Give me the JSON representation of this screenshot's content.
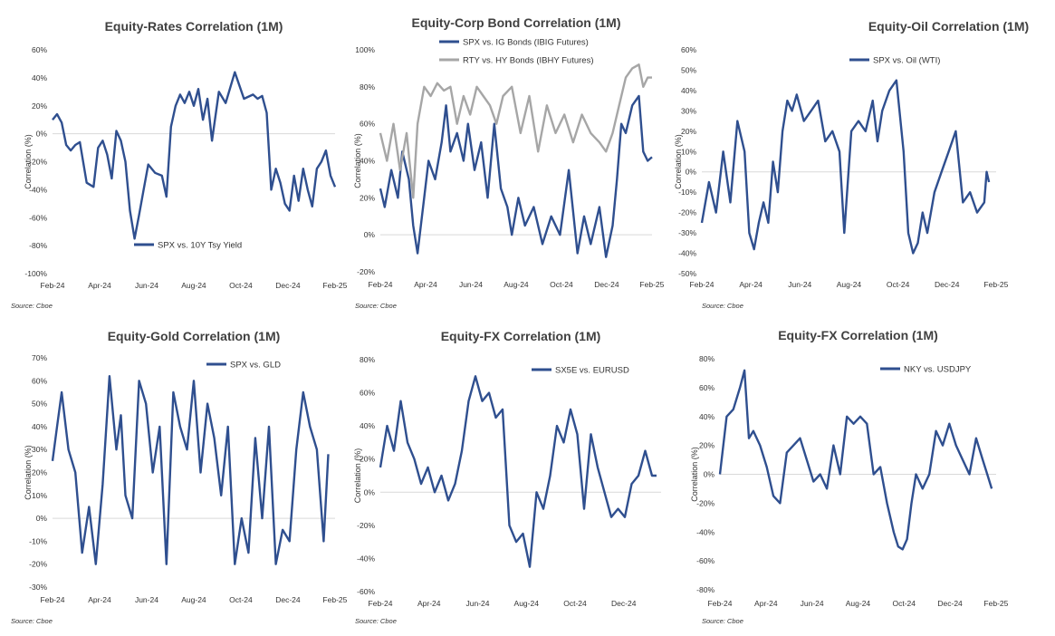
{
  "chart_data": [
    {
      "type": "line",
      "title": "Equity-Rates Correlation (1M)",
      "ylabel": "Correlation (%)",
      "source": "Source: Cboe",
      "xticks": [
        "Feb-24",
        "Apr-24",
        "Jun-24",
        "Aug-24",
        "Oct-24",
        "Dec-24",
        "Feb-25"
      ],
      "yticks": [
        "60%",
        "40%",
        "20%",
        "0%",
        "-20%",
        "-40%",
        "-60%",
        "-80%",
        "-100%"
      ],
      "ylim": [
        -100,
        60
      ],
      "legend_position": "bottom-center",
      "series": [
        {
          "name": "SPX vs. 10Y Tsy Yield",
          "color": "#2F4F8F",
          "x": [
            0,
            0.2,
            0.4,
            0.6,
            0.8,
            1.0,
            1.2,
            1.5,
            1.8,
            2.0,
            2.2,
            2.4,
            2.6,
            2.8,
            3.0,
            3.2,
            3.4,
            3.6,
            3.8,
            4.0,
            4.2,
            4.5,
            4.8,
            5.0,
            5.2,
            5.4,
            5.6,
            5.8,
            6.0,
            6.2,
            6.4,
            6.6,
            6.8,
            7.0,
            7.3,
            7.6,
            8.0,
            8.4,
            8.8,
            9.0,
            9.2,
            9.4,
            9.6,
            9.8,
            10.0,
            10.2,
            10.4,
            10.6,
            10.8,
            11.0,
            11.2,
            11.4,
            11.6,
            11.8,
            12.0,
            12.2,
            12.4
          ],
          "y": [
            10,
            14,
            8,
            -8,
            -12,
            -8,
            -6,
            -35,
            -38,
            -10,
            -5,
            -15,
            -32,
            2,
            -5,
            -20,
            -55,
            -75,
            -58,
            -40,
            -22,
            -28,
            -30,
            -45,
            5,
            20,
            28,
            22,
            30,
            20,
            32,
            10,
            25,
            -5,
            30,
            22,
            44,
            25,
            28,
            25,
            27,
            15,
            -40,
            -25,
            -35,
            -50,
            -55,
            -30,
            -48,
            -25,
            -40,
            -52,
            -25,
            -20,
            -12,
            -30,
            -38
          ]
        }
      ]
    },
    {
      "type": "line",
      "title": "Equity-Corp Bond Correlation (1M)",
      "ylabel": "Correlation (%)",
      "source": "Source: Cboe",
      "xticks": [
        "Feb-24",
        "Apr-24",
        "Jun-24",
        "Aug-24",
        "Oct-24",
        "Dec-24",
        "Feb-25"
      ],
      "yticks": [
        "100%",
        "80%",
        "60%",
        "40%",
        "20%",
        "0%",
        "-20%"
      ],
      "ylim": [
        -20,
        100
      ],
      "legend_position": "top-center",
      "series": [
        {
          "name": "SPX vs. IG Bonds (IBIG Futures)",
          "color": "#2F4F8F",
          "x": [
            0,
            0.2,
            0.5,
            0.8,
            1.0,
            1.3,
            1.5,
            1.7,
            2.0,
            2.2,
            2.5,
            2.8,
            3.0,
            3.2,
            3.5,
            3.8,
            4.0,
            4.3,
            4.6,
            4.9,
            5.2,
            5.5,
            5.8,
            6.0,
            6.3,
            6.6,
            7.0,
            7.4,
            7.8,
            8.2,
            8.6,
            9.0,
            9.3,
            9.6,
            10.0,
            10.3,
            10.6,
            10.8,
            11.0,
            11.2,
            11.5,
            11.8,
            12.0,
            12.2,
            12.4
          ],
          "y": [
            25,
            15,
            35,
            20,
            45,
            30,
            5,
            -10,
            20,
            40,
            30,
            50,
            70,
            45,
            55,
            40,
            60,
            35,
            50,
            20,
            60,
            25,
            15,
            0,
            20,
            5,
            15,
            -5,
            10,
            0,
            35,
            -10,
            10,
            -5,
            15,
            -12,
            5,
            30,
            60,
            55,
            70,
            75,
            45,
            40,
            42
          ]
        },
        {
          "name": "RTY vs. HY Bonds (IBHY Futures)",
          "color": "#A6A6A6",
          "x": [
            0,
            0.3,
            0.6,
            0.9,
            1.2,
            1.5,
            1.7,
            2.0,
            2.3,
            2.6,
            2.9,
            3.2,
            3.5,
            3.8,
            4.1,
            4.4,
            4.7,
            5.0,
            5.3,
            5.6,
            6.0,
            6.4,
            6.8,
            7.2,
            7.6,
            8.0,
            8.4,
            8.8,
            9.2,
            9.6,
            10.0,
            10.3,
            10.6,
            10.9,
            11.2,
            11.5,
            11.8,
            12.0,
            12.2,
            12.4
          ],
          "y": [
            55,
            40,
            60,
            35,
            55,
            20,
            60,
            80,
            75,
            82,
            78,
            80,
            60,
            75,
            65,
            80,
            75,
            70,
            60,
            75,
            80,
            55,
            75,
            45,
            70,
            55,
            65,
            50,
            65,
            55,
            50,
            45,
            55,
            70,
            85,
            90,
            92,
            80,
            85,
            85
          ]
        }
      ]
    },
    {
      "type": "line",
      "title": "Equity-Oil Correlation (1M)",
      "ylabel": "Correlation (%)",
      "source": "Source: Cboe",
      "xticks": [
        "Feb-24",
        "Apr-24",
        "Jun-24",
        "Aug-24",
        "Oct-24",
        "Dec-24",
        "Feb-25"
      ],
      "yticks": [
        "60%",
        "50%",
        "40%",
        "30%",
        "20%",
        "10%",
        "0%",
        "-10%",
        "-20%",
        "-30%",
        "-40%",
        "-50%"
      ],
      "ylim": [
        -50,
        60
      ],
      "legend_position": "top-right",
      "series": [
        {
          "name": "SPX vs. Oil (WTI)",
          "color": "#2F4F8F",
          "x": [
            0,
            0.3,
            0.6,
            0.9,
            1.2,
            1.5,
            1.8,
            2.0,
            2.2,
            2.4,
            2.6,
            2.8,
            3.0,
            3.2,
            3.4,
            3.6,
            3.8,
            4.0,
            4.3,
            4.6,
            4.9,
            5.2,
            5.5,
            5.8,
            6.0,
            6.3,
            6.6,
            6.9,
            7.2,
            7.4,
            7.6,
            7.9,
            8.2,
            8.5,
            8.7,
            8.9,
            9.1,
            9.3,
            9.5,
            9.8,
            10.1,
            10.4,
            10.7,
            11.0,
            11.3,
            11.6,
            11.9,
            12.0,
            12.1
          ],
          "y": [
            -25,
            -5,
            -20,
            10,
            -15,
            25,
            10,
            -30,
            -38,
            -25,
            -15,
            -25,
            5,
            -10,
            20,
            35,
            30,
            38,
            25,
            30,
            35,
            15,
            20,
            10,
            -30,
            20,
            25,
            20,
            35,
            15,
            30,
            40,
            45,
            10,
            -30,
            -40,
            -35,
            -20,
            -30,
            -10,
            0,
            10,
            20,
            -15,
            -10,
            -20,
            -15,
            0,
            -5
          ]
        }
      ]
    },
    {
      "type": "line",
      "title": "Equity-Gold Correlation (1M)",
      "ylabel": "Correlation (%)",
      "source": "Source: Cboe",
      "xticks": [
        "Feb-24",
        "Apr-24",
        "Jun-24",
        "Aug-24",
        "Oct-24",
        "Dec-24",
        "Feb-25"
      ],
      "yticks": [
        "70%",
        "60%",
        "50%",
        "40%",
        "30%",
        "20%",
        "10%",
        "0%",
        "-10%",
        "-20%",
        "-30%"
      ],
      "ylim": [
        -30,
        70
      ],
      "legend_position": "top-right",
      "series": [
        {
          "name": "SPX vs. GLD",
          "color": "#2F4F8F",
          "x": [
            0,
            0.2,
            0.4,
            0.7,
            1.0,
            1.3,
            1.6,
            1.9,
            2.2,
            2.5,
            2.8,
            3.0,
            3.2,
            3.5,
            3.8,
            4.1,
            4.4,
            4.7,
            5.0,
            5.3,
            5.6,
            5.9,
            6.2,
            6.5,
            6.8,
            7.1,
            7.4,
            7.7,
            8.0,
            8.3,
            8.6,
            8.9,
            9.2,
            9.5,
            9.8,
            10.1,
            10.4,
            10.7,
            11.0,
            11.3,
            11.6,
            11.9,
            12.1
          ],
          "y": [
            25,
            40,
            55,
            30,
            20,
            -15,
            5,
            -20,
            15,
            62,
            30,
            45,
            10,
            0,
            60,
            50,
            20,
            40,
            -20,
            55,
            40,
            30,
            60,
            20,
            50,
            35,
            10,
            40,
            -20,
            0,
            -15,
            35,
            0,
            40,
            -20,
            -5,
            -10,
            30,
            55,
            40,
            30,
            -10,
            28
          ]
        }
      ]
    },
    {
      "type": "line",
      "title": "Equity-FX Correlation (1M)",
      "ylabel": "Correlation (%)",
      "source": "Source: Cboe",
      "xticks": [
        "Feb-24",
        "Apr-24",
        "Jun-24",
        "Aug-24",
        "Oct-24",
        "Dec-24"
      ],
      "yticks": [
        "80%",
        "60%",
        "40%",
        "20%",
        "0%",
        "-20%",
        "-40%",
        "-60%"
      ],
      "ylim": [
        -60,
        80
      ],
      "legend_position": "top-right",
      "series": [
        {
          "name": "SX5E vs. EURUSD",
          "color": "#2F4F8F",
          "x": [
            0,
            0.3,
            0.6,
            0.9,
            1.2,
            1.5,
            1.8,
            2.1,
            2.4,
            2.7,
            3.0,
            3.3,
            3.6,
            3.9,
            4.2,
            4.5,
            4.8,
            5.1,
            5.4,
            5.7,
            6.0,
            6.3,
            6.6,
            6.9,
            7.2,
            7.5,
            7.8,
            8.1,
            8.4,
            8.7,
            9.0,
            9.3,
            9.6,
            9.9,
            10.2,
            10.5,
            10.8,
            11.1,
            11.4,
            11.7,
            12.0,
            12.2
          ],
          "y": [
            15,
            40,
            25,
            55,
            30,
            20,
            5,
            15,
            0,
            10,
            -5,
            5,
            25,
            55,
            70,
            55,
            60,
            45,
            50,
            -20,
            -30,
            -25,
            -45,
            0,
            -10,
            10,
            40,
            30,
            50,
            35,
            -10,
            35,
            15,
            0,
            -15,
            -10,
            -15,
            5,
            10,
            25,
            10,
            10
          ]
        }
      ]
    },
    {
      "type": "line",
      "title": "Equity-FX Correlation (1M)",
      "ylabel": "Correlation (%)",
      "source": "Source: Cboe",
      "xticks": [
        "Feb-24",
        "Apr-24",
        "Jun-24",
        "Aug-24",
        "Oct-24",
        "Dec-24",
        "Feb-25"
      ],
      "yticks": [
        "80%",
        "60%",
        "40%",
        "20%",
        "0%",
        "-20%",
        "-40%",
        "-60%",
        "-80%"
      ],
      "ylim": [
        -80,
        80
      ],
      "legend_position": "top-right",
      "series": [
        {
          "name": "NKY vs. USDJPY",
          "color": "#2F4F8F",
          "x": [
            0,
            0.3,
            0.6,
            0.9,
            1.1,
            1.3,
            1.5,
            1.8,
            2.1,
            2.4,
            2.7,
            3.0,
            3.3,
            3.6,
            3.9,
            4.2,
            4.5,
            4.8,
            5.1,
            5.4,
            5.7,
            6.0,
            6.3,
            6.6,
            6.9,
            7.2,
            7.5,
            7.8,
            8.0,
            8.2,
            8.4,
            8.6,
            8.8,
            9.1,
            9.4,
            9.7,
            10.0,
            10.3,
            10.6,
            10.9,
            11.2,
            11.5,
            11.8,
            12.0,
            12.2
          ],
          "y": [
            0,
            40,
            45,
            60,
            72,
            25,
            30,
            20,
            5,
            -15,
            -20,
            15,
            20,
            25,
            10,
            -5,
            0,
            -10,
            20,
            0,
            40,
            35,
            40,
            35,
            0,
            5,
            -20,
            -40,
            -50,
            -52,
            -45,
            -20,
            0,
            -10,
            0,
            30,
            20,
            35,
            20,
            10,
            0,
            25,
            10,
            0,
            -10
          ]
        }
      ]
    }
  ]
}
